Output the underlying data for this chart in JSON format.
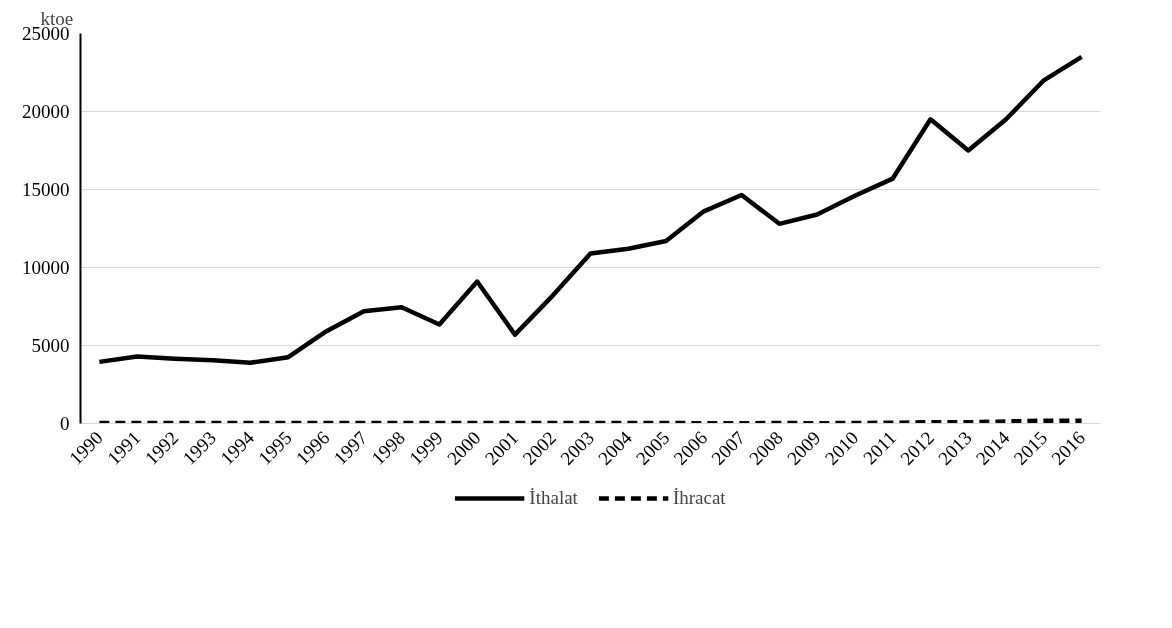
{
  "chart_data": {
    "type": "line",
    "ylabel": "ktoe",
    "categories": [
      "1990",
      "1991",
      "1992",
      "1993",
      "1994",
      "1995",
      "1996",
      "1997",
      "1998",
      "1999",
      "2000",
      "2001",
      "2002",
      "2003",
      "2004",
      "2005",
      "2006",
      "2007",
      "2008",
      "2009",
      "2010",
      "2011",
      "2012",
      "2013",
      "2014",
      "2015",
      "2016"
    ],
    "series": [
      {
        "name": "İthalat",
        "color": "#000000",
        "line_style": "solid",
        "values": [
          3950,
          4300,
          4150,
          4050,
          3900,
          4250,
          5900,
          7200,
          7450,
          6350,
          9100,
          5700,
          8200,
          10900,
          11200,
          11700,
          13600,
          14650,
          12800,
          13400,
          14600,
          15700,
          19500,
          17500,
          19500,
          22000,
          23500
        ]
      },
      {
        "name": "İhracat",
        "color": "#000000",
        "line_style": "dashed",
        "values": [
          30,
          30,
          30,
          30,
          30,
          30,
          30,
          30,
          30,
          30,
          40,
          40,
          30,
          30,
          30,
          30,
          20,
          20,
          30,
          20,
          30,
          50,
          80,
          80,
          130,
          180,
          180
        ]
      }
    ],
    "ylim": [
      0,
      25000
    ],
    "yticks": [
      0,
      5000,
      10000,
      15000,
      20000,
      25000
    ],
    "grid": "y",
    "legend": "bottom",
    "marker": "none"
  }
}
